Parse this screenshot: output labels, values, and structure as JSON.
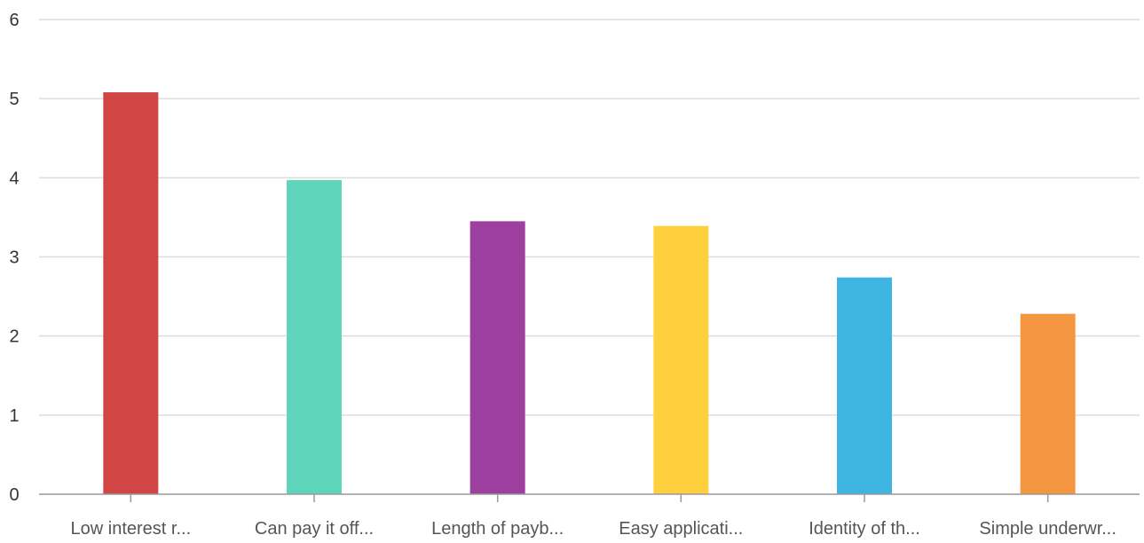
{
  "chart_data": {
    "type": "bar",
    "categories": [
      "Low interest r...",
      "Can pay it off...",
      "Length of payb...",
      "Easy applicati...",
      "Identity of th...",
      "Simple underwr..."
    ],
    "values": [
      5.08,
      3.97,
      3.45,
      3.39,
      2.74,
      2.28
    ],
    "colors": [
      "#d14545",
      "#5fd6bb",
      "#9c3f9e",
      "#fed03e",
      "#3eb4e0",
      "#f4963f"
    ],
    "yticks": [
      "0",
      "1",
      "2",
      "3",
      "4",
      "5",
      "6"
    ],
    "ylim": [
      0,
      6
    ],
    "grid": true,
    "legend": "none"
  }
}
